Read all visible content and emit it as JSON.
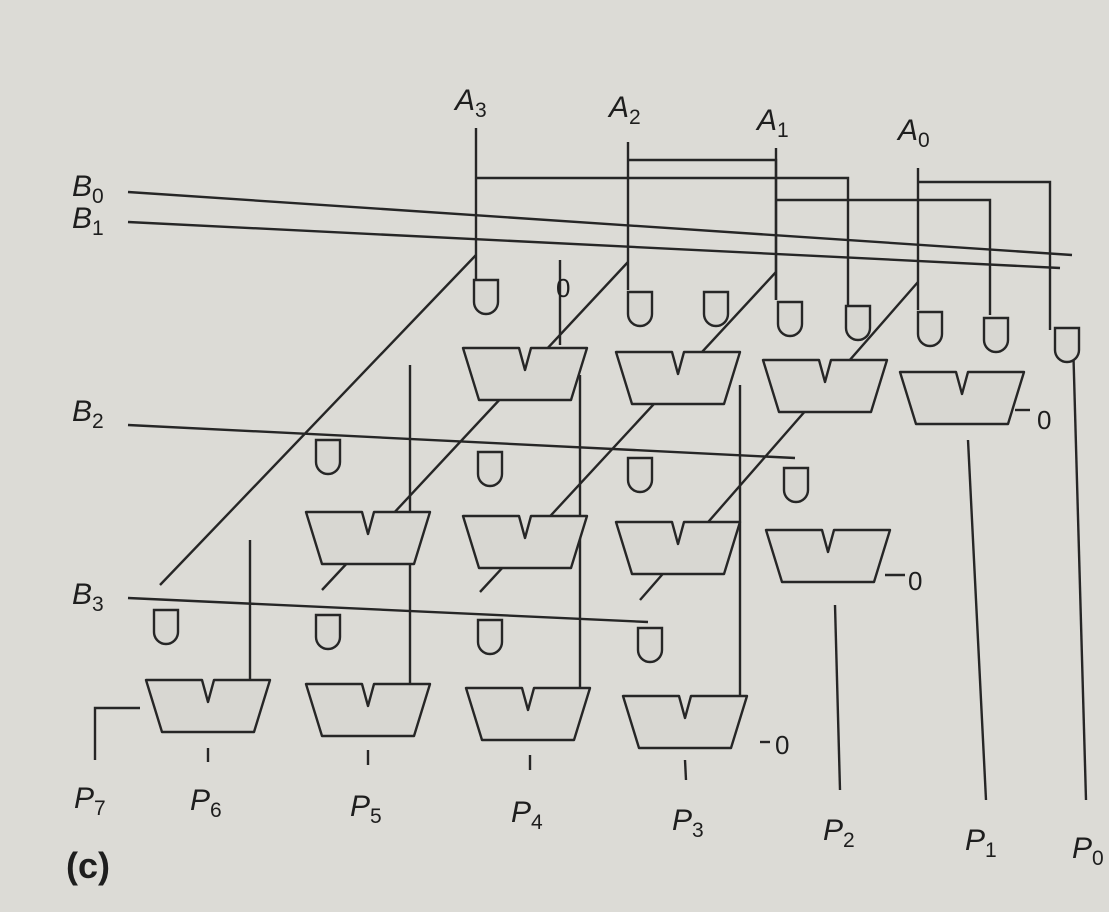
{
  "diagram": {
    "caption": "(c)",
    "constant_zero": "0",
    "inputs_a": [
      {
        "letter": "A",
        "index": "3"
      },
      {
        "letter": "A",
        "index": "2"
      },
      {
        "letter": "A",
        "index": "1"
      },
      {
        "letter": "A",
        "index": "0"
      }
    ],
    "inputs_b": [
      {
        "letter": "B",
        "index": "0"
      },
      {
        "letter": "B",
        "index": "1"
      },
      {
        "letter": "B",
        "index": "2"
      },
      {
        "letter": "B",
        "index": "3"
      }
    ],
    "outputs": [
      {
        "letter": "P",
        "index": "7"
      },
      {
        "letter": "P",
        "index": "6"
      },
      {
        "letter": "P",
        "index": "5"
      },
      {
        "letter": "P",
        "index": "4"
      },
      {
        "letter": "P",
        "index": "3"
      },
      {
        "letter": "P",
        "index": "2"
      },
      {
        "letter": "P",
        "index": "1"
      },
      {
        "letter": "P",
        "index": "0"
      }
    ]
  },
  "colors": {
    "ink": "#262626",
    "paper": "#dcdbd6"
  }
}
